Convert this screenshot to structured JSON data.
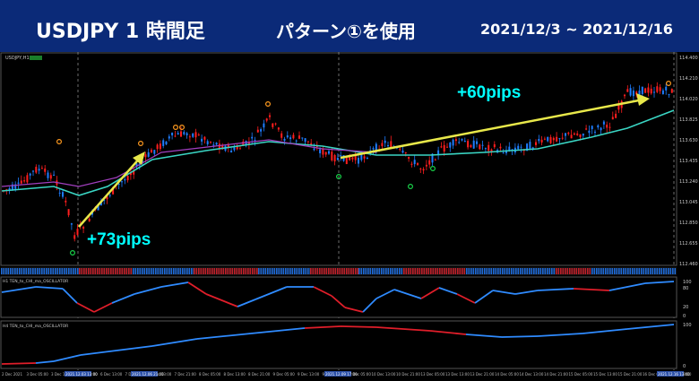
{
  "banner": {
    "title": "USDJPY 1 時間足",
    "pattern": "パターン①を使用",
    "date_range": "2021/12/3 ~ 2021/12/16"
  },
  "main_chart": {
    "symbol_label": "USDJPY,H1",
    "price_ticks": [
      "114.400",
      "114.210",
      "114.020",
      "113.825",
      "113.630",
      "113.435",
      "113.240",
      "113.045",
      "112.850",
      "112.655",
      "112.460"
    ],
    "annotations": [
      {
        "text": "+73pips",
        "color": "#00ffff"
      },
      {
        "text": "+60pips",
        "color": "#00ffff"
      }
    ],
    "colors": {
      "bull": "#1e7dff",
      "bear": "#ff1e1e",
      "ma": "#3ad6c4",
      "ma2": "#a23fbf",
      "arrow": "#e8e84a"
    }
  },
  "indicator1": {
    "label": "H1 TEN_to_CHI_ma_OSCILLATOR",
    "ticks": [
      "100",
      "80",
      "20",
      "0"
    ]
  },
  "indicator2": {
    "label": "H4 TEN_to_CHI_ma_OSCILLATOR",
    "ticks": [
      "100",
      "0"
    ]
  },
  "time_axis": {
    "labels": [
      "2 Dec 2021",
      "3 Dec 05:00",
      "3 Dec 13:00",
      "6 Dec 05:00",
      "6 Dec 13:00",
      "7 Dec 05:00",
      "7 Dec 13:00",
      "7 Dec 21:00",
      "8 Dec 05:00",
      "8 Dec 13:00",
      "8 Dec 21:00",
      "9 Dec 05:00",
      "9 Dec 13:00",
      "9 Dec 21:00",
      "10 Dec 05:00",
      "10 Dec 13:00",
      "10 Dec 21:00",
      "13 Dec 05:00",
      "13 Dec 13:00",
      "13 Dec 21:00",
      "14 Dec 05:00",
      "14 Dec 13:00",
      "14 Dec 21:00",
      "15 Dec 05:00",
      "15 Dec 13:00",
      "15 Dec 21:00",
      "16 Dec 05:00",
      "16 Dec 13:00"
    ],
    "highlighted": [
      "2021.12.03 13:00",
      "2021.12.06 21:00",
      "2021.12.09 17:00",
      "2021.12.16 13:00"
    ]
  }
}
